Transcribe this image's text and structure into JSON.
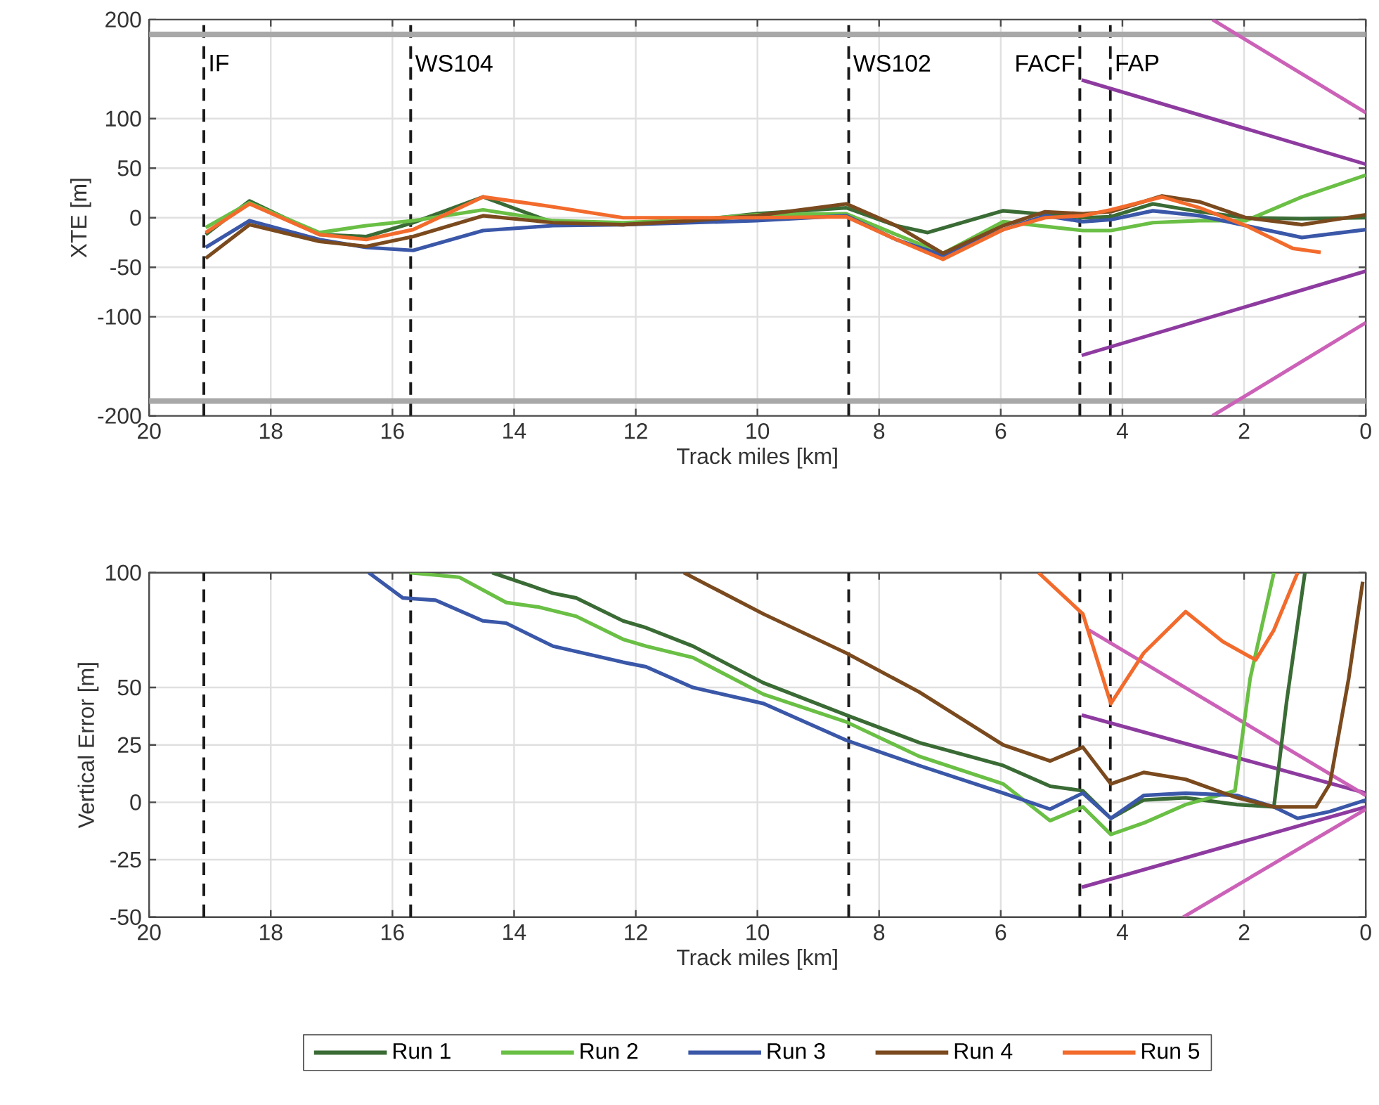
{
  "chart_data": [
    {
      "type": "line",
      "xlabel": "Track miles [km]",
      "ylabel": "XTE [m]",
      "xlim": [
        20,
        0
      ],
      "ylim": [
        -200,
        200
      ],
      "xticks": [
        20,
        18,
        16,
        14,
        12,
        10,
        8,
        6,
        4,
        2,
        0
      ],
      "yticks": [
        -200,
        -100,
        -50,
        0,
        50,
        100,
        200
      ],
      "grid": true,
      "line_style": "solid",
      "ref_lines": [
        {
          "axis": "x",
          "value": 19.1,
          "label": "IF",
          "color": "#1a1a1a",
          "line_style": "dashed"
        },
        {
          "axis": "x",
          "value": 15.7,
          "label": "WS104",
          "color": "#1a1a1a",
          "line_style": "dashed"
        },
        {
          "axis": "x",
          "value": 8.5,
          "label": "WS102",
          "color": "#1a1a1a",
          "line_style": "dashed"
        },
        {
          "axis": "x",
          "value": 4.7,
          "label": "FACF",
          "color": "#1a1a1a",
          "line_style": "dashed"
        },
        {
          "axis": "x",
          "value": 4.2,
          "label": "FAP",
          "color": "#1a1a1a",
          "line_style": "dashed"
        },
        {
          "axis": "y",
          "value": 185,
          "color": "#a8a8a8",
          "line_style": "solid"
        },
        {
          "axis": "y",
          "value": -185,
          "color": "#a8a8a8",
          "line_style": "solid"
        }
      ],
      "series": [
        {
          "color": "#8e3ba0",
          "x": [
            4.67,
            0
          ],
          "values": [
            139,
            54
          ]
        },
        {
          "color": "#8e3ba0",
          "x": [
            4.67,
            0
          ],
          "values": [
            -139,
            -54
          ]
        },
        {
          "color": "#cc62b8",
          "x": [
            2.52,
            0
          ],
          "values": [
            200,
            106
          ]
        },
        {
          "color": "#cc62b8",
          "x": [
            2.52,
            0
          ],
          "values": [
            -200,
            -106
          ]
        },
        {
          "color": "#3a6b35",
          "x": [
            19.07,
            18.35,
            17.2,
            16.43,
            15.66,
            14.51,
            13.36,
            12.21,
            11.06,
            10.02,
            8.54,
            7.72,
            7.2,
            5.96,
            4.65,
            4.19,
            3.5,
            2.73,
            1.97,
            1.05,
            0
          ],
          "values": [
            -17,
            17,
            -17,
            -19,
            -5,
            21,
            -5,
            -7,
            -3,
            4,
            10,
            -8,
            -15,
            7,
            0,
            1,
            14,
            6,
            0,
            -1,
            0
          ]
        },
        {
          "color": "#6abf45",
          "x": [
            19.07,
            18.35,
            17.2,
            16.43,
            15.66,
            14.51,
            13.36,
            12.21,
            11.06,
            10.02,
            8.54,
            7.72,
            6.95,
            5.96,
            4.65,
            4.19,
            3.5,
            2.73,
            1.97,
            1.05,
            0
          ],
          "values": [
            -10,
            15,
            -15,
            -8,
            -3,
            8,
            -3,
            -5,
            -2,
            3,
            4,
            -17,
            -36,
            -4,
            -13,
            -13,
            -5,
            -3,
            -3,
            21,
            43
          ]
        },
        {
          "color": "#3a57a8",
          "x": [
            19.07,
            18.35,
            17.2,
            16.43,
            15.66,
            14.51,
            13.36,
            12.21,
            11.06,
            10.02,
            8.54,
            7.72,
            6.95,
            5.96,
            5.27,
            4.65,
            4.19,
            3.5,
            2.73,
            1.97,
            1.05,
            0
          ],
          "values": [
            -30,
            -3,
            -22,
            -30,
            -33,
            -13,
            -8,
            -7,
            -5,
            -3,
            2,
            -22,
            -38,
            -12,
            2,
            -4,
            -2,
            7,
            2,
            -8,
            -20,
            -12
          ]
        },
        {
          "color": "#7a4a1e",
          "x": [
            19.07,
            18.35,
            17.2,
            16.43,
            15.66,
            14.51,
            13.36,
            12.21,
            11.06,
            10.02,
            8.54,
            7.72,
            6.95,
            5.96,
            5.27,
            4.65,
            4.19,
            3.35,
            2.73,
            1.97,
            1.05,
            0
          ],
          "values": [
            -41,
            -7,
            -24,
            -29,
            -19,
            2,
            -5,
            -7,
            -3,
            2,
            14,
            -8,
            -36,
            -8,
            6,
            4,
            6,
            22,
            16,
            0,
            -7,
            3
          ]
        },
        {
          "color": "#f26b2c",
          "x": [
            19.07,
            18.35,
            17.2,
            16.43,
            15.66,
            14.51,
            13.36,
            12.21,
            11.06,
            10.02,
            8.54,
            7.72,
            6.95,
            5.96,
            5.27,
            4.65,
            4.19,
            3.35,
            2.73,
            1.97,
            1.2,
            0.74
          ],
          "values": [
            -15,
            14,
            -17,
            -22,
            -12,
            21,
            11,
            0,
            0,
            0,
            1,
            -22,
            -42,
            -12,
            0,
            2,
            8,
            21,
            10,
            -8,
            -31,
            -35
          ]
        }
      ]
    },
    {
      "type": "line",
      "xlabel": "Track miles [km]",
      "ylabel": "Vertical Error [m]",
      "xlim": [
        20,
        0
      ],
      "ylim": [
        -50,
        100
      ],
      "xticks": [
        20,
        18,
        16,
        14,
        12,
        10,
        8,
        6,
        4,
        2,
        0
      ],
      "yticks": [
        -50,
        -25,
        0,
        25,
        50,
        100
      ],
      "grid": true,
      "line_style": "solid",
      "legend": "bottom",
      "ref_lines": [
        {
          "axis": "x",
          "value": 19.1,
          "color": "#1a1a1a",
          "line_style": "dashed"
        },
        {
          "axis": "x",
          "value": 15.7,
          "color": "#1a1a1a",
          "line_style": "dashed"
        },
        {
          "axis": "x",
          "value": 8.5,
          "color": "#1a1a1a",
          "line_style": "dashed"
        },
        {
          "axis": "x",
          "value": 4.7,
          "color": "#1a1a1a",
          "line_style": "dashed"
        },
        {
          "axis": "x",
          "value": 4.2,
          "color": "#1a1a1a",
          "line_style": "dashed"
        }
      ],
      "series": [
        {
          "color": "#8e3ba0",
          "x": [
            4.67,
            0
          ],
          "values": [
            38,
            4
          ]
        },
        {
          "color": "#8e3ba0",
          "x": [
            4.67,
            0
          ],
          "values": [
            -37,
            -2
          ]
        },
        {
          "color": "#cc62b8",
          "x": [
            4.55,
            0
          ],
          "values": [
            75,
            3
          ]
        },
        {
          "color": "#cc62b8",
          "x": [
            3.0,
            0
          ],
          "values": [
            -50,
            -3
          ]
        },
        {
          "name": "Run 1",
          "color": "#3a6b35",
          "x": [
            14.36,
            13.36,
            12.98,
            12.21,
            11.83,
            11.06,
            9.9,
            8.54,
            7.34,
            5.96,
            5.19,
            4.65,
            4.19,
            3.65,
            2.96,
            2.12,
            1.51,
            1.3,
            1.0
          ],
          "values": [
            100,
            91,
            89,
            79,
            76,
            68,
            52,
            38,
            26,
            16,
            7,
            5,
            -7,
            1,
            2,
            -1,
            -2,
            44,
            100
          ]
        },
        {
          "name": "Run 2",
          "color": "#6abf45",
          "x": [
            15.72,
            14.9,
            14.13,
            13.59,
            12.98,
            12.21,
            11.83,
            11.06,
            9.9,
            8.54,
            7.34,
            5.96,
            5.19,
            4.65,
            4.19,
            3.65,
            2.96,
            2.15,
            1.9,
            1.51
          ],
          "values": [
            100,
            98,
            87,
            85,
            81,
            71,
            68,
            63,
            47,
            35,
            20,
            8,
            -8,
            -2,
            -14,
            -9,
            -1,
            5,
            54,
            100
          ]
        },
        {
          "name": "Run 3",
          "color": "#3a57a8",
          "x": [
            16.39,
            15.83,
            15.29,
            14.51,
            14.13,
            13.36,
            12.21,
            11.83,
            11.06,
            9.9,
            8.54,
            7.34,
            5.96,
            5.19,
            4.65,
            4.19,
            3.65,
            2.96,
            2.12,
            1.51,
            1.12,
            0.59,
            0
          ],
          "values": [
            100,
            89,
            88,
            79,
            78,
            68,
            61,
            59,
            50,
            43,
            27,
            16,
            4,
            -3,
            4,
            -7,
            3,
            4,
            3,
            -2,
            -7,
            -4,
            1
          ]
        },
        {
          "name": "Run 4",
          "color": "#7a4a1e",
          "x": [
            11.21,
            9.9,
            8.54,
            7.34,
            5.96,
            5.19,
            4.65,
            4.19,
            3.65,
            2.96,
            2.12,
            1.51,
            0.82,
            0.59,
            0.28,
            0.05
          ],
          "values": [
            100,
            82,
            65,
            48,
            25,
            18,
            24,
            8,
            13,
            10,
            2,
            -2,
            -2,
            8,
            54,
            96
          ]
        },
        {
          "name": "Run 5",
          "color": "#f26b2c",
          "x": [
            5.38,
            4.65,
            4.19,
            3.65,
            2.96,
            2.35,
            1.81,
            1.51,
            1.12
          ],
          "values": [
            100,
            82,
            43,
            65,
            83,
            70,
            62,
            75,
            100
          ]
        }
      ]
    }
  ]
}
